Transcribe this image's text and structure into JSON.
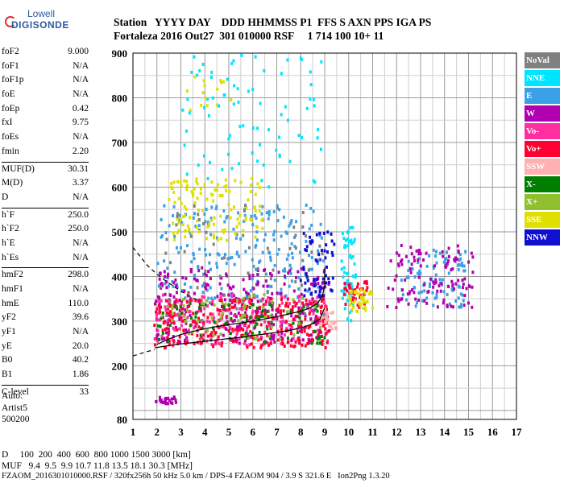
{
  "logo": {
    "line1": "Lowell",
    "line2": "DIGISONDE"
  },
  "header": {
    "line1": "Station   YYYY DAY    DDD HHMMSS P1  FFS S AXN PPS IGA PS",
    "line2": "Fortaleza 2016 Out27  301 010000 RSF     1 714 100 10+ 11"
  },
  "params": [
    [
      {
        "k": "foF2",
        "v": "9.000"
      },
      {
        "k": "foF1",
        "v": "N/A"
      },
      {
        "k": "foF1p",
        "v": "N/A"
      },
      {
        "k": "foE",
        "v": "N/A"
      },
      {
        "k": "foEp",
        "v": "0.42"
      },
      {
        "k": "fxI",
        "v": "9.75"
      },
      {
        "k": "foEs",
        "v": "N/A"
      },
      {
        "k": "fmin",
        "v": "2.20"
      }
    ],
    [
      {
        "k": "MUF(D)",
        "v": "30.31"
      },
      {
        "k": "M(D)",
        "v": "3.37"
      },
      {
        "k": "D",
        "v": "N/A"
      }
    ],
    [
      {
        "k": "h`F",
        "v": "250.0"
      },
      {
        "k": "h`F2",
        "v": "250.0"
      },
      {
        "k": "h`E",
        "v": "N/A"
      },
      {
        "k": "h`Es",
        "v": "N/A"
      }
    ],
    [
      {
        "k": "hmF2",
        "v": "298.0"
      },
      {
        "k": "hmF1",
        "v": "N/A"
      },
      {
        "k": "hmE",
        "v": "110.0"
      },
      {
        "k": "yF2",
        "v": "39.6"
      },
      {
        "k": "yF1",
        "v": "N/A"
      },
      {
        "k": "yE",
        "v": "20.0"
      },
      {
        "k": "B0",
        "v": "40.2"
      },
      {
        "k": "B1",
        "v": "1.86"
      }
    ],
    [
      {
        "k": "C-level",
        "v": "33"
      }
    ]
  ],
  "auto": {
    "line1": "Auto:",
    "line2": "Artist5",
    "line3": "500200"
  },
  "legend": [
    {
      "label": "NoVal",
      "color": "#808080"
    },
    {
      "label": "NNE",
      "color": "#00e5ff"
    },
    {
      "label": "E",
      "color": "#3aa0e8"
    },
    {
      "label": "W",
      "color": "#b000b0"
    },
    {
      "label": "Vo-",
      "color": "#ff2fa0"
    },
    {
      "label": "Vo+",
      "color": "#ff0030"
    },
    {
      "label": "SSW",
      "color": "#ffb0b0"
    },
    {
      "label": "X-",
      "color": "#008000"
    },
    {
      "label": "X+",
      "color": "#90c030"
    },
    {
      "label": "SSE",
      "color": "#e0e000"
    },
    {
      "label": "NNW",
      "color": "#1010d0"
    }
  ],
  "footer": {
    "line1": "D     100  200  400  600  800 1000 1500 3000 [km]",
    "line2": "MUF   9.4  9.5  9.9 10.7 11.8 13.5 18.1 30.3 [MHz]",
    "line3": "FZAOM_2016301010000.RSF / 320fx256h 50 kHz 5.0 km / DPS-4 FZAOM 904 / 3.9 S 321.6 E   Ion2Png 1.3.20"
  },
  "chart_data": {
    "type": "scatter",
    "xlim": [
      1,
      17
    ],
    "ylim": [
      80,
      900
    ],
    "x_ticks": [
      1,
      2,
      3,
      4,
      5,
      6,
      7,
      8,
      9,
      10,
      11,
      12,
      13,
      14,
      15,
      16,
      17
    ],
    "y_ticks": [
      80,
      200,
      300,
      400,
      500,
      600,
      700,
      800,
      900
    ],
    "grid": true,
    "traces": [
      {
        "name": "",
        "x": [
          1.9,
          2.2,
          2.6,
          3.0,
          3.5,
          4.0,
          4.5,
          5.0,
          5.5,
          6.0,
          6.5,
          7.0,
          7.5,
          8.0,
          8.4,
          8.8,
          9.0
        ],
        "y": [
          240,
          243,
          246,
          249,
          252,
          255,
          258,
          261,
          264,
          268,
          271,
          275,
          279,
          285,
          292,
          305,
          330
        ]
      },
      {
        "name": "",
        "x": [
          2.0,
          2.5,
          3.0,
          3.5,
          4.0,
          4.5,
          5.0,
          5.5,
          6.0,
          6.5,
          7.0,
          7.5,
          8.0,
          8.4,
          8.7,
          8.9,
          9.0,
          9.0
        ],
        "y": [
          248,
          260,
          270,
          277,
          283,
          288,
          292,
          296,
          300,
          305,
          310,
          316,
          322,
          330,
          340,
          355,
          380,
          420
        ]
      },
      {
        "name": "",
        "x": [
          1.0,
          1.3,
          1.6,
          2.0,
          2.5,
          3.0,
          3.5,
          3.8
        ],
        "y": [
          465,
          445,
          425,
          405,
          385,
          367,
          352,
          345
        ]
      },
      {
        "name": "",
        "x": [
          1.0,
          1.3,
          1.6,
          1.9
        ],
        "y": [
          222,
          227,
          232,
          236
        ]
      }
    ],
    "clusters": [
      {
        "mode": "NNE",
        "xr": [
          9.7,
          10.3
        ],
        "yr": [
          300,
          510
        ],
        "n": 60
      },
      {
        "mode": "E",
        "xr": [
          2.0,
          9.0
        ],
        "yr": [
          350,
          560
        ],
        "n": 220
      },
      {
        "mode": "E",
        "xr": [
          12.2,
          14.9
        ],
        "yr": [
          330,
          460
        ],
        "n": 90
      },
      {
        "mode": "W",
        "xr": [
          1.9,
          9.2
        ],
        "yr": [
          250,
          420
        ],
        "n": 320
      },
      {
        "mode": "W",
        "xr": [
          11.6,
          15.2
        ],
        "yr": [
          330,
          470
        ],
        "n": 110
      },
      {
        "mode": "Vo-",
        "xr": [
          1.9,
          9.2
        ],
        "yr": [
          245,
          360
        ],
        "n": 200
      },
      {
        "mode": "Vo+",
        "xr": [
          1.9,
          9.2
        ],
        "yr": [
          240,
          350
        ],
        "n": 280
      },
      {
        "mode": "Vo+",
        "xr": [
          9.8,
          10.8
        ],
        "yr": [
          330,
          390
        ],
        "n": 40
      },
      {
        "mode": "SSW",
        "xr": [
          8.8,
          9.5
        ],
        "yr": [
          280,
          330
        ],
        "n": 25
      },
      {
        "mode": "X-",
        "xr": [
          2.0,
          9.0
        ],
        "yr": [
          250,
          340
        ],
        "n": 80
      },
      {
        "mode": "X+",
        "xr": [
          2.0,
          9.0
        ],
        "yr": [
          260,
          360
        ],
        "n": 60
      },
      {
        "mode": "SSE",
        "xr": [
          2.5,
          6.5
        ],
        "yr": [
          480,
          620
        ],
        "n": 120
      },
      {
        "mode": "SSE",
        "xr": [
          3.2,
          5.2
        ],
        "yr": [
          760,
          850
        ],
        "n": 15
      },
      {
        "mode": "SSE",
        "xr": [
          10.0,
          11.0
        ],
        "yr": [
          320,
          370
        ],
        "n": 40
      },
      {
        "mode": "NNW",
        "xr": [
          8.0,
          9.4
        ],
        "yr": [
          350,
          500
        ],
        "n": 60
      },
      {
        "mode": "NoVal",
        "xr": [
          2.0,
          9.0
        ],
        "yr": [
          300,
          560
        ],
        "n": 60
      },
      {
        "mode": "W",
        "xr": [
          1.9,
          2.8
        ],
        "yr": [
          115,
          130
        ],
        "n": 25
      },
      {
        "mode": "NNE",
        "xr": [
          3.0,
          9.0
        ],
        "yr": [
          600,
          900
        ],
        "n": 80
      }
    ]
  }
}
